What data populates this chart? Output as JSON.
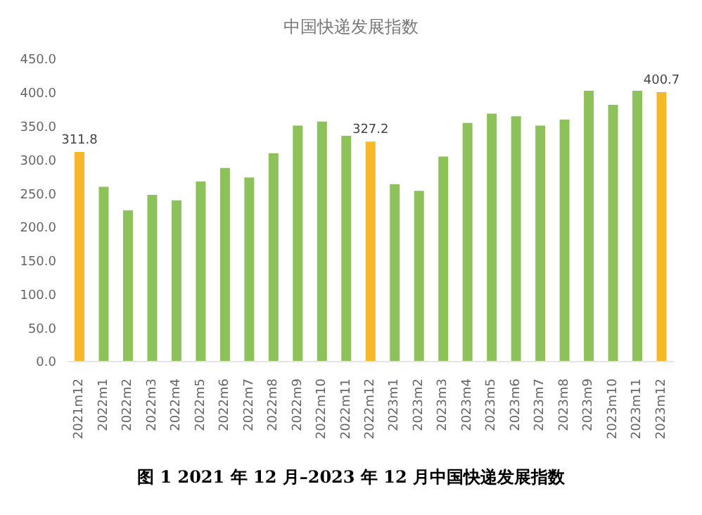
{
  "chart_data": {
    "type": "bar",
    "title": "中国快递发展指数",
    "categories": [
      "2021m12",
      "2022m1",
      "2022m2",
      "2022m3",
      "2022m4",
      "2022m5",
      "2022m6",
      "2022m7",
      "2022m8",
      "2022m9",
      "2022m10",
      "2022m11",
      "2022m12",
      "2023m1",
      "2023m2",
      "2023m3",
      "2023m4",
      "2023m5",
      "2023m6",
      "2023m7",
      "2023m8",
      "2023m9",
      "2023m10",
      "2023m11",
      "2023m12"
    ],
    "values": [
      311.8,
      260,
      225,
      248,
      240,
      268,
      288,
      274,
      310,
      351,
      357,
      336,
      327.2,
      264,
      254,
      305,
      355,
      369,
      365,
      351,
      360,
      403,
      382,
      403,
      400.7
    ],
    "colors": [
      "#f5b829",
      "#8dc15a",
      "#8dc15a",
      "#8dc15a",
      "#8dc15a",
      "#8dc15a",
      "#8dc15a",
      "#8dc15a",
      "#8dc15a",
      "#8dc15a",
      "#8dc15a",
      "#8dc15a",
      "#f5b829",
      "#8dc15a",
      "#8dc15a",
      "#8dc15a",
      "#8dc15a",
      "#8dc15a",
      "#8dc15a",
      "#8dc15a",
      "#8dc15a",
      "#8dc15a",
      "#8dc15a",
      "#8dc15a",
      "#f5b829"
    ],
    "value_labels": [
      "311.8",
      null,
      null,
      null,
      null,
      null,
      null,
      null,
      null,
      null,
      null,
      null,
      "327.2",
      null,
      null,
      null,
      null,
      null,
      null,
      null,
      null,
      null,
      null,
      null,
      "400.7"
    ],
    "ylim": [
      0,
      450
    ],
    "yticks": [
      {
        "value": 0,
        "label": "0.0"
      },
      {
        "value": 50,
        "label": "50.0"
      },
      {
        "value": 100,
        "label": "100.0"
      },
      {
        "value": 150,
        "label": "150.0"
      },
      {
        "value": 200,
        "label": "200.0"
      },
      {
        "value": 250,
        "label": "250.0"
      },
      {
        "value": 300,
        "label": "300.0"
      },
      {
        "value": 350,
        "label": "350.0"
      },
      {
        "value": 400,
        "label": "400.0"
      },
      {
        "value": 450,
        "label": "450.0"
      }
    ],
    "grid": false,
    "legend": false,
    "annotations": [
      "图 1 2021 年 12 月–2023 年 12 月中国快递发展指数"
    ]
  }
}
